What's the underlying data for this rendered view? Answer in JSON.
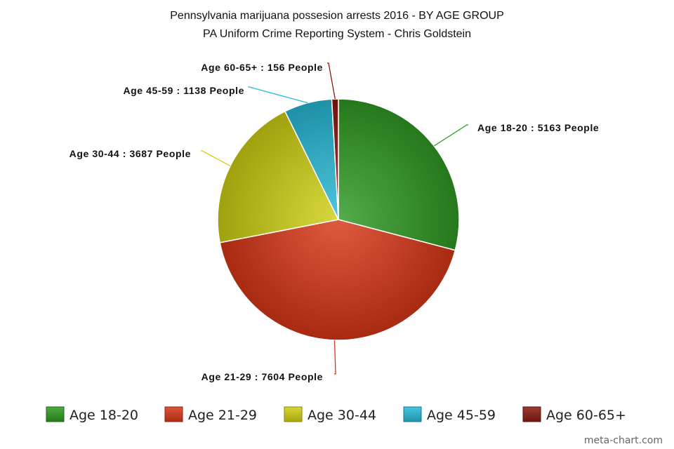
{
  "chart_data": {
    "type": "pie",
    "title": "Pennsylvania marijuana possesion arrests 2016 - BY AGE GROUP",
    "subtitle": "PA Uniform Crime Reporting System - Chris Goldstein",
    "categories": [
      "Age 18-20",
      "Age 21-29",
      "Age 30-44",
      "Age 45-59",
      "Age 60-65+"
    ],
    "values": [
      5163,
      7604,
      3687,
      1138,
      156
    ],
    "data_labels": [
      "Age 18-20 : 5163 People",
      "Age 21-29 : 7604 People",
      "Age 30-44 : 3687 People",
      "Age 45-59 : 1138 People",
      "Age 60-65+ : 156 People"
    ],
    "colors": [
      "#2f9a22",
      "#d83616",
      "#cfcf12",
      "#27b9d6",
      "#8a1a10"
    ],
    "legend_position": "bottom",
    "credit": "meta-chart.com"
  }
}
